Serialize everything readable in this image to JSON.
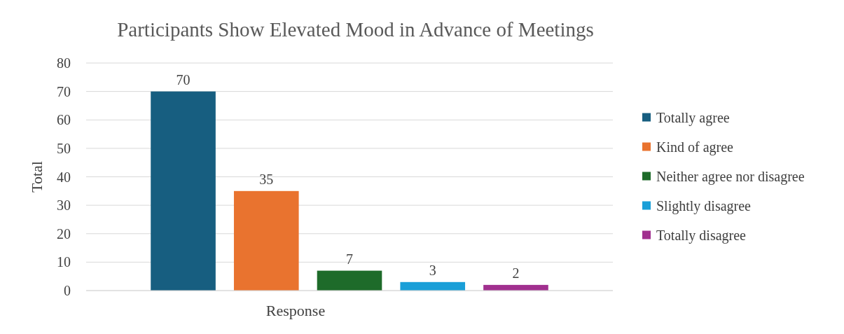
{
  "chart_data": {
    "type": "bar",
    "title": "Participants Show Elevated Mood in Advance of Meetings",
    "xlabel": "Response",
    "ylabel": "Total",
    "categories": [
      null
    ],
    "series": [
      {
        "name": "Totally agree",
        "color": "#175e80",
        "values": [
          70
        ]
      },
      {
        "name": "Kind of agree",
        "color": "#e9732f",
        "values": [
          35
        ]
      },
      {
        "name": "Neither agree nor disagree",
        "color": "#1e6b2a",
        "values": [
          7
        ]
      },
      {
        "name": "Slightly disagree",
        "color": "#1a9fd8",
        "values": [
          3
        ]
      },
      {
        "name": "Totally disagree",
        "color": "#a1308f",
        "values": [
          2
        ]
      }
    ],
    "ylim": [
      0,
      80
    ],
    "yticks": [
      0,
      10,
      20,
      30,
      40,
      50,
      60,
      70,
      80
    ],
    "grid": "y",
    "legend": "right",
    "data_labels": true
  }
}
